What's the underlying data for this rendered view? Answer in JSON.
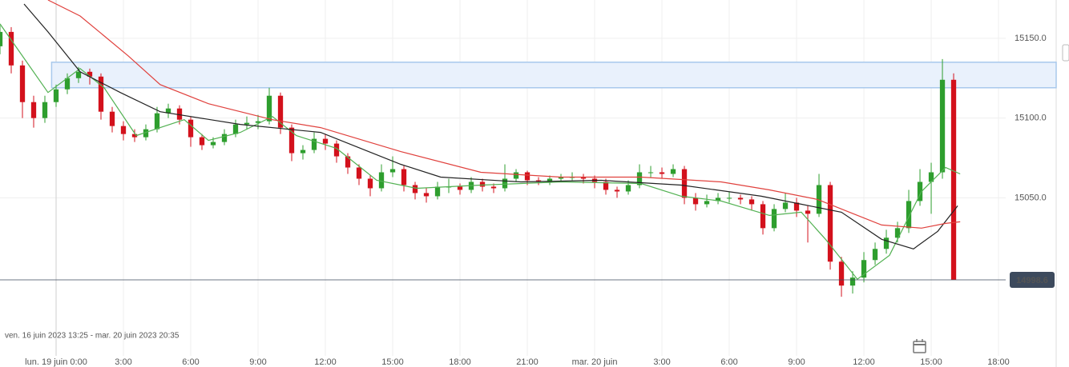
{
  "chart_data": {
    "type": "candlestick",
    "range_label": "ven. 16 juin 2023 13:25 - mar. 20 juin 2023 20:35",
    "xlim": [
      -2.5,
      42.32
    ],
    "ylim": [
      14956,
      15174
    ],
    "xticks": [
      {
        "value": 0,
        "label": "lun. 19 juin 0:00"
      },
      {
        "value": 3,
        "label": "3:00"
      },
      {
        "value": 6,
        "label": "6:00"
      },
      {
        "value": 9,
        "label": "9:00"
      },
      {
        "value": 12,
        "label": "12:00"
      },
      {
        "value": 15,
        "label": "15:00"
      },
      {
        "value": 18,
        "label": "18:00"
      },
      {
        "value": 21,
        "label": "21:00"
      },
      {
        "value": 24,
        "label": "mar. 20 juin"
      },
      {
        "value": 27,
        "label": "3:00"
      },
      {
        "value": 30,
        "label": "6:00"
      },
      {
        "value": 33,
        "label": "9:00"
      },
      {
        "value": 36,
        "label": "12:00"
      },
      {
        "value": 39,
        "label": "15:00"
      },
      {
        "value": 42,
        "label": "18:00"
      }
    ],
    "yticks": [
      {
        "value": 15150,
        "label": "15150.0"
      },
      {
        "value": 15100,
        "label": "15100.0"
      },
      {
        "value": 15050,
        "label": "15050.0"
      }
    ],
    "grid": true,
    "up_color": "#2e9e2e",
    "down_color": "#d3111c",
    "x": [
      -2.5,
      -2,
      -1.5,
      -1,
      -0.5,
      0,
      0.5,
      1,
      1.5,
      2,
      2.5,
      3,
      3.5,
      4,
      4.5,
      5,
      5.5,
      6,
      6.5,
      7,
      7.5,
      8,
      8.5,
      9,
      9.5,
      10,
      10.5,
      11,
      11.5,
      12,
      12.5,
      13,
      13.5,
      14,
      14.5,
      15,
      15.5,
      16,
      16.5,
      17,
      17.5,
      18,
      18.5,
      19,
      19.5,
      20,
      20.5,
      21,
      21.5,
      22,
      22.5,
      23,
      23.5,
      24,
      24.5,
      25,
      25.5,
      26,
      26.5,
      27,
      27.5,
      28,
      28.5,
      29,
      29.5,
      30,
      30.5,
      31,
      31.5,
      32,
      32.5,
      33,
      33.5,
      34,
      34.5,
      35,
      35.5,
      36,
      36.5,
      37,
      37.5,
      38,
      38.5,
      39,
      39.5,
      40
    ],
    "open": [
      15145,
      15154,
      15133,
      15110,
      15100,
      15110,
      15118,
      15125,
      15129,
      15126,
      15104,
      15095,
      15090,
      15088,
      15093,
      15103,
      15106,
      15099,
      15088,
      15083,
      15085,
      15090,
      15096,
      15097,
      15098,
      15114,
      15094,
      15078,
      15080,
      15087,
      15084,
      15076,
      15069,
      15062,
      15056,
      15066,
      15068,
      15058,
      15053,
      15051,
      15057,
      15057,
      15055,
      15060,
      15057,
      15056,
      15062,
      15066,
      15061,
      15060,
      15062,
      15063,
      15063,
      15062,
      15060,
      15055,
      15054,
      15058,
      15066,
      15066,
      15065,
      15068,
      15050,
      15046,
      15048,
      15050,
      15050,
      15049,
      15046,
      15031,
      15043,
      15047,
      15042,
      15040,
      15058,
      15010,
      14995,
      15000,
      15011,
      15018,
      15025,
      15031,
      15048,
      15060,
      15066,
      15124
    ],
    "high": [
      15158,
      15157,
      15136,
      15114,
      15114,
      15121,
      15128,
      15132,
      15131,
      15128,
      15107,
      15098,
      15093,
      15096,
      15107,
      15109,
      15108,
      15101,
      15090,
      15088,
      15093,
      15099,
      15101,
      15102,
      15119,
      15116,
      15096,
      15083,
      15091,
      15090,
      15086,
      15078,
      15071,
      15064,
      15071,
      15076,
      15070,
      15060,
      15056,
      15060,
      15062,
      15059,
      15063,
      15062,
      15059,
      15071,
      15068,
      15067,
      15063,
      15064,
      15065,
      15066,
      15065,
      15064,
      15062,
      15057,
      15061,
      15071,
      15070,
      15069,
      15071,
      15070,
      15053,
      15052,
      15053,
      15054,
      15052,
      15051,
      15048,
      15046,
      15053,
      15050,
      15045,
      15065,
      15060,
      15013,
      15004,
      15016,
      15022,
      15030,
      15035,
      15055,
      15068,
      15072,
      15137,
      15128
    ],
    "low": [
      15140,
      15128,
      15100,
      15094,
      15097,
      15107,
      15115,
      15122,
      15121,
      15099,
      15091,
      15086,
      15085,
      15086,
      15091,
      15100,
      15096,
      15082,
      15080,
      15081,
      15083,
      15088,
      15093,
      15093,
      15096,
      15090,
      15073,
      15074,
      15078,
      15080,
      15072,
      15065,
      15058,
      15051,
      15054,
      15063,
      15054,
      15049,
      15047,
      15049,
      15053,
      15052,
      15053,
      15054,
      15053,
      15054,
      15060,
      15058,
      15058,
      15058,
      15060,
      15061,
      15059,
      15056,
      15052,
      15050,
      15052,
      15056,
      15063,
      15062,
      15063,
      15046,
      15042,
      15044,
      15046,
      15047,
      15046,
      15042,
      15027,
      15029,
      15041,
      15038,
      15022,
      15038,
      15005,
      14988,
      14990,
      14997,
      15008,
      15015,
      15022,
      15028,
      15045,
      15040,
      15062,
      14998.6
    ],
    "close": [
      15154,
      15133,
      15110,
      15100,
      15110,
      15118,
      15125,
      15129,
      15126,
      15104,
      15095,
      15090,
      15088,
      15093,
      15103,
      15106,
      15099,
      15088,
      15083,
      15085,
      15090,
      15096,
      15097,
      15098,
      15114,
      15094,
      15078,
      15080,
      15087,
      15084,
      15076,
      15069,
      15062,
      15056,
      15066,
      15068,
      15058,
      15053,
      15051,
      15057,
      15057,
      15055,
      15060,
      15057,
      15056,
      15062,
      15066,
      15061,
      15060,
      15062,
      15063,
      15063,
      15062,
      15060,
      15055,
      15054,
      15058,
      15066,
      15066,
      15065,
      15068,
      15050,
      15046,
      15048,
      15050,
      15050,
      15049,
      15046,
      15031,
      15043,
      15047,
      15042,
      15040,
      15058,
      15010,
      14995,
      15000,
      15011,
      15018,
      15025,
      15031,
      15048,
      15060,
      15066,
      15124,
      14998.6
    ],
    "moving_averages": [
      {
        "color": "#52b152",
        "x": [
          -2.5,
          -0.36,
          1.07,
          2.14,
          3.57,
          4.64,
          5.71,
          6.79,
          8.21,
          9.64,
          10.71,
          12.5,
          14.29,
          16.07,
          18.93,
          22.5,
          26.07,
          27.86,
          29.64,
          31.79,
          33.21,
          34.29,
          35.71,
          37.14,
          38.57,
          39.64,
          40.29
        ],
        "values": [
          15159,
          15116,
          15131,
          15119,
          15089,
          15094,
          15099,
          15086,
          15091,
          15101,
          15089,
          15081,
          15061,
          15056,
          15058,
          15060,
          15059,
          15051,
          15048,
          15039,
          15041,
          15024,
          14999,
          15014,
          15054,
          15069,
          15065
        ]
      },
      {
        "color": "#222222",
        "x": [
          -1.43,
          -0.36,
          1.07,
          2.86,
          4.64,
          8.21,
          11.79,
          13.57,
          15.36,
          17.14,
          20.71,
          24.29,
          27.86,
          31.43,
          33.21,
          35,
          36.79,
          38.21,
          39.29,
          40.18
        ],
        "values": [
          15171.5,
          15154,
          15129,
          15116,
          15104,
          15096,
          15091,
          15081,
          15071,
          15063,
          15060,
          15061,
          15058,
          15051,
          15046,
          15041,
          15024,
          15018,
          15029,
          15045
        ]
      },
      {
        "color": "#e0413d",
        "x": [
          -0.36,
          1.07,
          3.21,
          4.64,
          6.79,
          9.64,
          11.79,
          15.36,
          18.93,
          22.5,
          26.07,
          29.64,
          31.79,
          33.93,
          35.36,
          36.79,
          38.57,
          39.64,
          40.29
        ],
        "values": [
          15174,
          15164,
          15139,
          15121,
          15109,
          15099,
          15094,
          15079,
          15066,
          15063,
          15063,
          15060,
          15055,
          15049,
          15041,
          15033,
          15031,
          15034,
          15035
        ]
      }
    ],
    "zone": {
      "x_start": -0.2,
      "low": 15119,
      "high": 15135,
      "color": "#e9f1fc",
      "border_color": "#a9c9ec"
    },
    "last_price": 14998.6,
    "last_price_color": "#3d4a5d"
  }
}
